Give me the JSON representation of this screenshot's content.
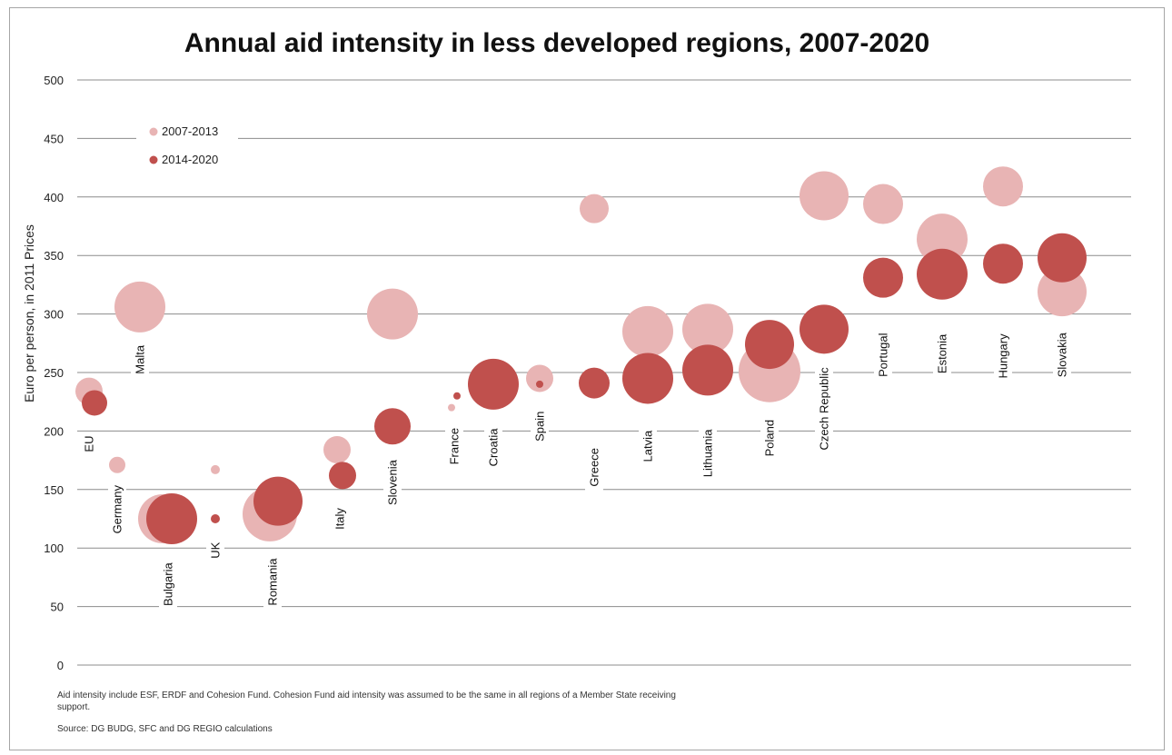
{
  "chart_data": {
    "type": "scatter",
    "title": "Annual aid intensity in less developed regions, 2007-2020",
    "ylabel": "Euro per person, in 2011 Prices",
    "xlabel": "",
    "ylim": [
      0,
      500
    ],
    "yticks": [
      0,
      50,
      100,
      150,
      200,
      250,
      300,
      350,
      400,
      450,
      500
    ],
    "grid": true,
    "legend_position": "top-left",
    "bubble_scale_note": "bubble size reflects relative region population",
    "colors": {
      "2007-2013": "#e8b4b4",
      "2014-2020": "#c0504d"
    },
    "series": [
      {
        "name": "2007-2013",
        "points": [
          {
            "category": "EU",
            "y": 234,
            "size": 15
          },
          {
            "category": "Malta",
            "y": 306,
            "size": 28
          },
          {
            "category": "Germany",
            "y": 171,
            "size": 9
          },
          {
            "category": "Bulgaria",
            "y": 125,
            "size": 27
          },
          {
            "category": "UK",
            "y": 167,
            "size": 5
          },
          {
            "category": "Romania",
            "y": 129,
            "size": 30
          },
          {
            "category": "Italy",
            "y": 184,
            "size": 15
          },
          {
            "category": "Slovenia",
            "y": 300,
            "size": 28
          },
          {
            "category": "France",
            "y": 220,
            "size": 4
          },
          {
            "category": "Spain",
            "y": 245,
            "size": 15
          },
          {
            "category": "Greece",
            "y": 390,
            "size": 16
          },
          {
            "category": "Latvia",
            "y": 285,
            "size": 28
          },
          {
            "category": "Lithuania",
            "y": 287,
            "size": 28
          },
          {
            "category": "Poland",
            "y": 251,
            "size": 34
          },
          {
            "category": "Czech Republic",
            "y": 401,
            "size": 27
          },
          {
            "category": "Portugal",
            "y": 394,
            "size": 22
          },
          {
            "category": "Estonia",
            "y": 364,
            "size": 28
          },
          {
            "category": "Hungary",
            "y": 409,
            "size": 22
          },
          {
            "category": "Slovakia",
            "y": 319,
            "size": 27
          }
        ]
      },
      {
        "name": "2014-2020",
        "points": [
          {
            "category": "EU",
            "y": 224,
            "size": 14
          },
          {
            "category": "Bulgaria",
            "y": 125,
            "size": 28
          },
          {
            "category": "UK",
            "y": 125,
            "size": 5
          },
          {
            "category": "Romania",
            "y": 140,
            "size": 27
          },
          {
            "category": "Italy",
            "y": 162,
            "size": 15
          },
          {
            "category": "Slovenia",
            "y": 204,
            "size": 20
          },
          {
            "category": "France",
            "y": 230,
            "size": 4
          },
          {
            "category": "Croatia",
            "y": 240,
            "size": 28
          },
          {
            "category": "Spain",
            "y": 240,
            "size": 4
          },
          {
            "category": "Greece",
            "y": 241,
            "size": 17
          },
          {
            "category": "Latvia",
            "y": 245,
            "size": 28
          },
          {
            "category": "Lithuania",
            "y": 252,
            "size": 28
          },
          {
            "category": "Poland",
            "y": 274,
            "size": 27
          },
          {
            "category": "Czech Republic",
            "y": 287,
            "size": 27
          },
          {
            "category": "Portugal",
            "y": 331,
            "size": 22
          },
          {
            "category": "Estonia",
            "y": 334,
            "size": 28
          },
          {
            "category": "Hungary",
            "y": 343,
            "size": 22
          },
          {
            "category": "Slovakia",
            "y": 348,
            "size": 27
          }
        ]
      }
    ],
    "category_labels": [
      {
        "text": "EU",
        "y": 189
      },
      {
        "text": "Malta",
        "y": 261
      },
      {
        "text": "Germany",
        "y": 133
      },
      {
        "text": "Bulgaria",
        "y": 69
      },
      {
        "text": "UK",
        "y": 98
      },
      {
        "text": "Romania",
        "y": 71
      },
      {
        "text": "Italy",
        "y": 125
      },
      {
        "text": "Slovenia",
        "y": 156
      },
      {
        "text": "France",
        "y": 187
      },
      {
        "text": "Croatia",
        "y": 186
      },
      {
        "text": "Spain",
        "y": 204
      },
      {
        "text": "Greece",
        "y": 169
      },
      {
        "text": "Latvia",
        "y": 187
      },
      {
        "text": "Lithuania",
        "y": 181
      },
      {
        "text": "Poland",
        "y": 194
      },
      {
        "text": "Czech Republic",
        "y": 219
      },
      {
        "text": "Portugal",
        "y": 265
      },
      {
        "text": "Estonia",
        "y": 266
      },
      {
        "text": "Hungary",
        "y": 264
      },
      {
        "text": "Slovakia",
        "y": 265
      }
    ]
  },
  "notes": {
    "line1": "Aid intensity include ESF, ERDF and Cohesion Fund. Cohesion Fund aid intensity was assumed to be the same in all regions of a Member State receiving",
    "line2": "support.",
    "source": "Source: DG BUDG, SFC and DG REGIO calculations"
  }
}
